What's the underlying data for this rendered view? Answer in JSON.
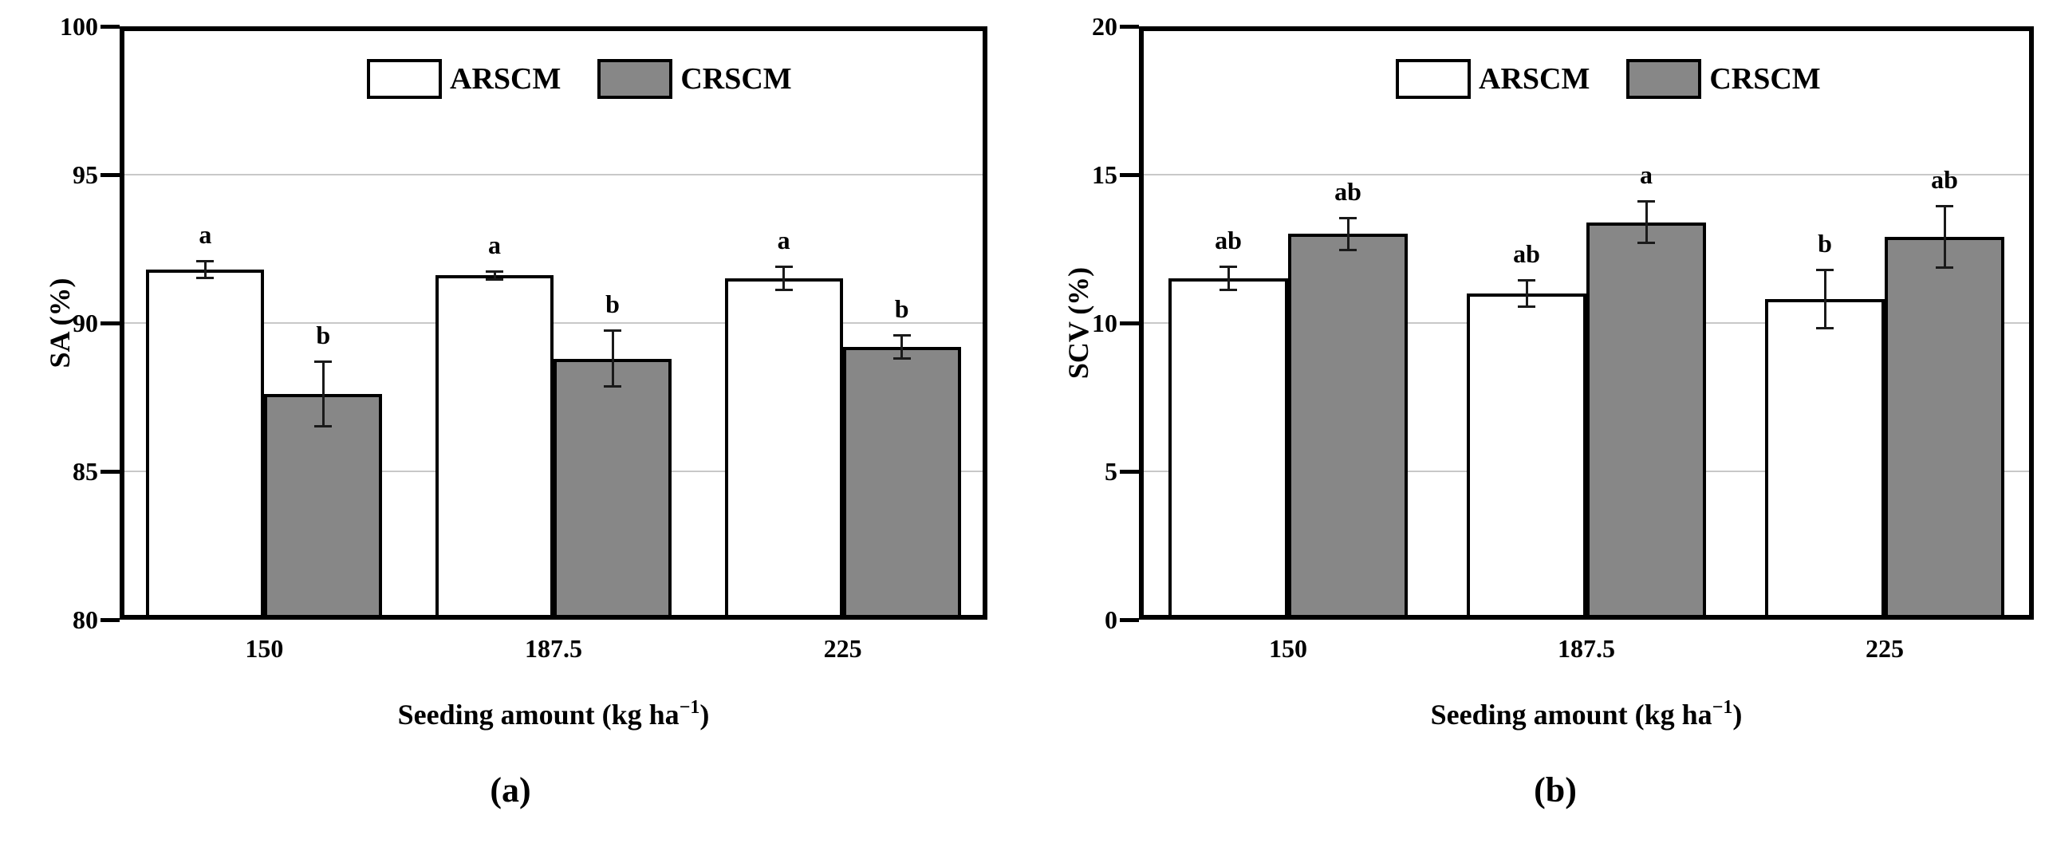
{
  "legend": {
    "series_a_label": "ARSCM",
    "series_b_label": "CRSCM"
  },
  "colors": {
    "arscm_fill": "#ffffff",
    "crscm_fill": "#878787",
    "axis": "#000000",
    "gridline": "#c8c8c8",
    "error_bar": "#1a1a1a"
  },
  "chart_data": [
    {
      "type": "bar",
      "panel_caption": "(a)",
      "title": "",
      "ylabel": "SA (%)",
      "xlabel_pre": "Seeding amount (kg ha",
      "xlabel_sup": "−1",
      "xlabel_post": ")",
      "categories": [
        "150",
        "187.5",
        "225"
      ],
      "series": [
        {
          "name": "ARSCM",
          "fill": "#ffffff",
          "values": [
            91.8,
            91.6,
            91.5
          ],
          "errors": [
            0.3,
            0.15,
            0.4
          ],
          "sig_letters": [
            "a",
            "a",
            "a"
          ]
        },
        {
          "name": "CRSCM",
          "fill": "#878787",
          "values": [
            87.6,
            88.8,
            89.2
          ],
          "errors": [
            1.1,
            0.95,
            0.4
          ],
          "sig_letters": [
            "b",
            "b",
            "b"
          ]
        }
      ],
      "ylim": [
        80,
        100
      ],
      "yticks": [
        80,
        85,
        90,
        95,
        100
      ],
      "gridlines_at": [
        85,
        90,
        95
      ],
      "grid": true,
      "legend_position": "top-center"
    },
    {
      "type": "bar",
      "panel_caption": "(b)",
      "title": "",
      "ylabel": "SCV (%)",
      "xlabel_pre": "Seeding amount (kg ha",
      "xlabel_sup": "−1",
      "xlabel_post": ")",
      "categories": [
        "150",
        "187.5",
        "225"
      ],
      "series": [
        {
          "name": "ARSCM",
          "fill": "#ffffff",
          "values": [
            11.5,
            11.0,
            10.8
          ],
          "errors": [
            0.4,
            0.45,
            1.0
          ],
          "sig_letters": [
            "ab",
            "ab",
            "b"
          ]
        },
        {
          "name": "CRSCM",
          "fill": "#878787",
          "values": [
            13.0,
            13.4,
            12.9
          ],
          "errors": [
            0.55,
            0.7,
            1.05
          ],
          "sig_letters": [
            "ab",
            "a",
            "ab"
          ]
        }
      ],
      "ylim": [
        0,
        20
      ],
      "yticks": [
        0,
        5,
        10,
        15,
        20
      ],
      "gridlines_at": [
        5,
        10,
        15
      ],
      "grid": true,
      "legend_position": "top-center"
    }
  ]
}
